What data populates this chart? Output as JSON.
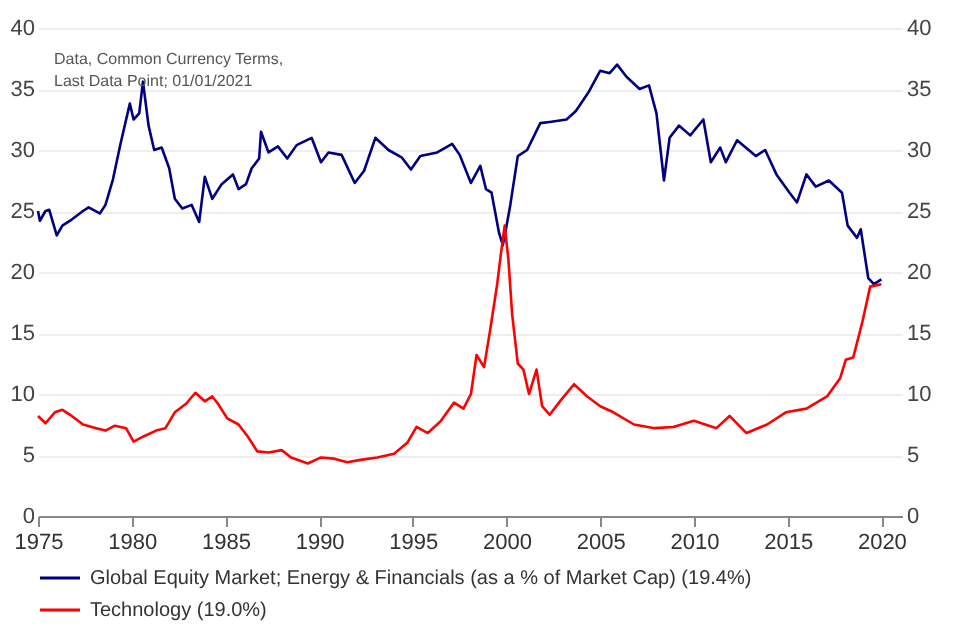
{
  "chart_data": {
    "type": "line",
    "annotations": [
      "Data, Common Currency Terms,",
      "Last Data Point; 01/01/2021"
    ],
    "xlim": [
      1975,
      2021.1
    ],
    "xticks": [
      1975,
      1980,
      1985,
      1990,
      1995,
      2000,
      2005,
      2010,
      2015,
      2020
    ],
    "ylim": [
      0,
      40
    ],
    "yticks": [
      0,
      5,
      10,
      15,
      20,
      25,
      30,
      35,
      40
    ],
    "y2lim": [
      0,
      40
    ],
    "y2ticks": [
      0,
      5,
      10,
      15,
      20,
      25,
      30,
      35,
      40
    ],
    "grid": "y",
    "legend": "bottom",
    "line_style": "solid",
    "series": [
      {
        "name": "Global Equity Market; Energy & Financials (as a % of Market Cap) (19.4%)",
        "color": "#000080",
        "x": [
          1975.0,
          1975.1,
          1975.4,
          1975.6,
          1976.0,
          1976.3,
          1976.8,
          1977.4,
          1977.7,
          1978.3,
          1978.6,
          1979.0,
          1979.4,
          1979.9,
          1980.1,
          1980.4,
          1980.6,
          1980.9,
          1981.2,
          1981.6,
          1982.0,
          1982.3,
          1982.7,
          1983.2,
          1983.6,
          1983.9,
          1984.3,
          1984.8,
          1985.4,
          1985.7,
          1986.1,
          1986.4,
          1986.8,
          1986.9,
          1987.3,
          1987.8,
          1988.3,
          1988.8,
          1989.6,
          1990.1,
          1990.5,
          1991.2,
          1991.9,
          1992.4,
          1993.0,
          1993.7,
          1994.4,
          1994.9,
          1995.4,
          1996.3,
          1997.1,
          1997.5,
          1998.1,
          1998.6,
          1998.9,
          1999.2,
          1999.6,
          1999.8,
          2000.0,
          2000.2,
          2000.6,
          2001.1,
          2001.8,
          2002.3,
          2003.2,
          2003.7,
          2004.4,
          2005.0,
          2005.5,
          2005.9,
          2006.4,
          2007.1,
          2007.6,
          2008.0,
          2008.4,
          2008.7,
          2009.2,
          2009.8,
          2010.5,
          2010.9,
          2011.4,
          2011.7,
          2012.3,
          2013.3,
          2013.8,
          2014.4,
          2015.1,
          2015.5,
          2016.0,
          2016.5,
          2017.2,
          2017.9,
          2018.2,
          2018.7,
          2018.9,
          2019.3,
          2019.6,
          2020.0
        ],
        "values": [
          25.0,
          24.2,
          25.0,
          25.1,
          23.0,
          23.8,
          24.3,
          25.0,
          25.3,
          24.8,
          25.5,
          27.6,
          30.5,
          33.8,
          32.5,
          33.0,
          35.6,
          32.0,
          30.0,
          30.2,
          28.5,
          26.0,
          25.2,
          25.5,
          24.1,
          27.8,
          26.0,
          27.2,
          28.0,
          26.8,
          27.2,
          28.5,
          29.3,
          31.5,
          29.8,
          30.3,
          29.3,
          30.4,
          31.0,
          29.0,
          29.8,
          29.6,
          27.3,
          28.3,
          31.0,
          30.0,
          29.4,
          28.4,
          29.5,
          29.8,
          30.5,
          29.6,
          27.3,
          28.7,
          26.8,
          26.5,
          23.2,
          22.2,
          23.8,
          25.5,
          29.5,
          30.0,
          32.2,
          32.3,
          32.5,
          33.2,
          34.8,
          36.5,
          36.3,
          37.0,
          36.0,
          35.0,
          35.3,
          33.0,
          27.5,
          31.0,
          32.0,
          31.2,
          32.5,
          29.0,
          30.2,
          29.0,
          30.8,
          29.5,
          30.0,
          28.0,
          26.5,
          25.7,
          28.0,
          27.0,
          27.5,
          26.5,
          23.8,
          22.8,
          23.5,
          19.5,
          19.0,
          19.4
        ]
      },
      {
        "name": "Technology (19.0%)",
        "color": "#ff0000",
        "x": [
          1975.0,
          1975.4,
          1975.9,
          1976.3,
          1976.8,
          1977.4,
          1978.1,
          1978.6,
          1979.1,
          1979.7,
          1980.1,
          1980.6,
          1981.3,
          1981.8,
          1982.3,
          1982.9,
          1983.4,
          1983.9,
          1984.3,
          1984.6,
          1985.1,
          1985.7,
          1986.2,
          1986.7,
          1987.3,
          1988.0,
          1988.5,
          1989.4,
          1990.1,
          1990.8,
          1991.5,
          1992.2,
          1993.1,
          1994.0,
          1994.7,
          1995.2,
          1995.8,
          1996.5,
          1997.2,
          1997.7,
          1998.1,
          1998.4,
          1998.8,
          1999.1,
          1999.5,
          1999.7,
          1999.9,
          2000.1,
          2000.3,
          2000.6,
          2000.9,
          2001.2,
          2001.6,
          2001.9,
          2002.3,
          2002.9,
          2003.6,
          2004.3,
          2005.0,
          2005.7,
          2006.8,
          2007.9,
          2008.9,
          2010.0,
          2011.2,
          2011.9,
          2012.8,
          2013.9,
          2014.9,
          2016.0,
          2017.1,
          2017.8,
          2018.1,
          2018.5,
          2019.0,
          2019.4,
          2020.0
        ],
        "values": [
          8.2,
          7.6,
          8.5,
          8.7,
          8.2,
          7.5,
          7.2,
          7.0,
          7.4,
          7.2,
          6.1,
          6.5,
          7.0,
          7.2,
          8.5,
          9.2,
          10.1,
          9.4,
          9.8,
          9.2,
          8.0,
          7.5,
          6.5,
          5.3,
          5.2,
          5.4,
          4.8,
          4.3,
          4.8,
          4.7,
          4.4,
          4.6,
          4.8,
          5.1,
          6.0,
          7.3,
          6.8,
          7.8,
          9.3,
          8.8,
          10.0,
          13.2,
          12.2,
          15.0,
          19.0,
          21.5,
          23.8,
          21.0,
          16.5,
          12.5,
          12.0,
          10.0,
          12.0,
          9.0,
          8.3,
          9.5,
          10.8,
          9.8,
          9.0,
          8.5,
          7.5,
          7.2,
          7.3,
          7.8,
          7.2,
          8.2,
          6.8,
          7.5,
          8.5,
          8.8,
          9.8,
          11.3,
          12.8,
          13.0,
          16.0,
          18.8,
          19.0
        ]
      }
    ]
  }
}
